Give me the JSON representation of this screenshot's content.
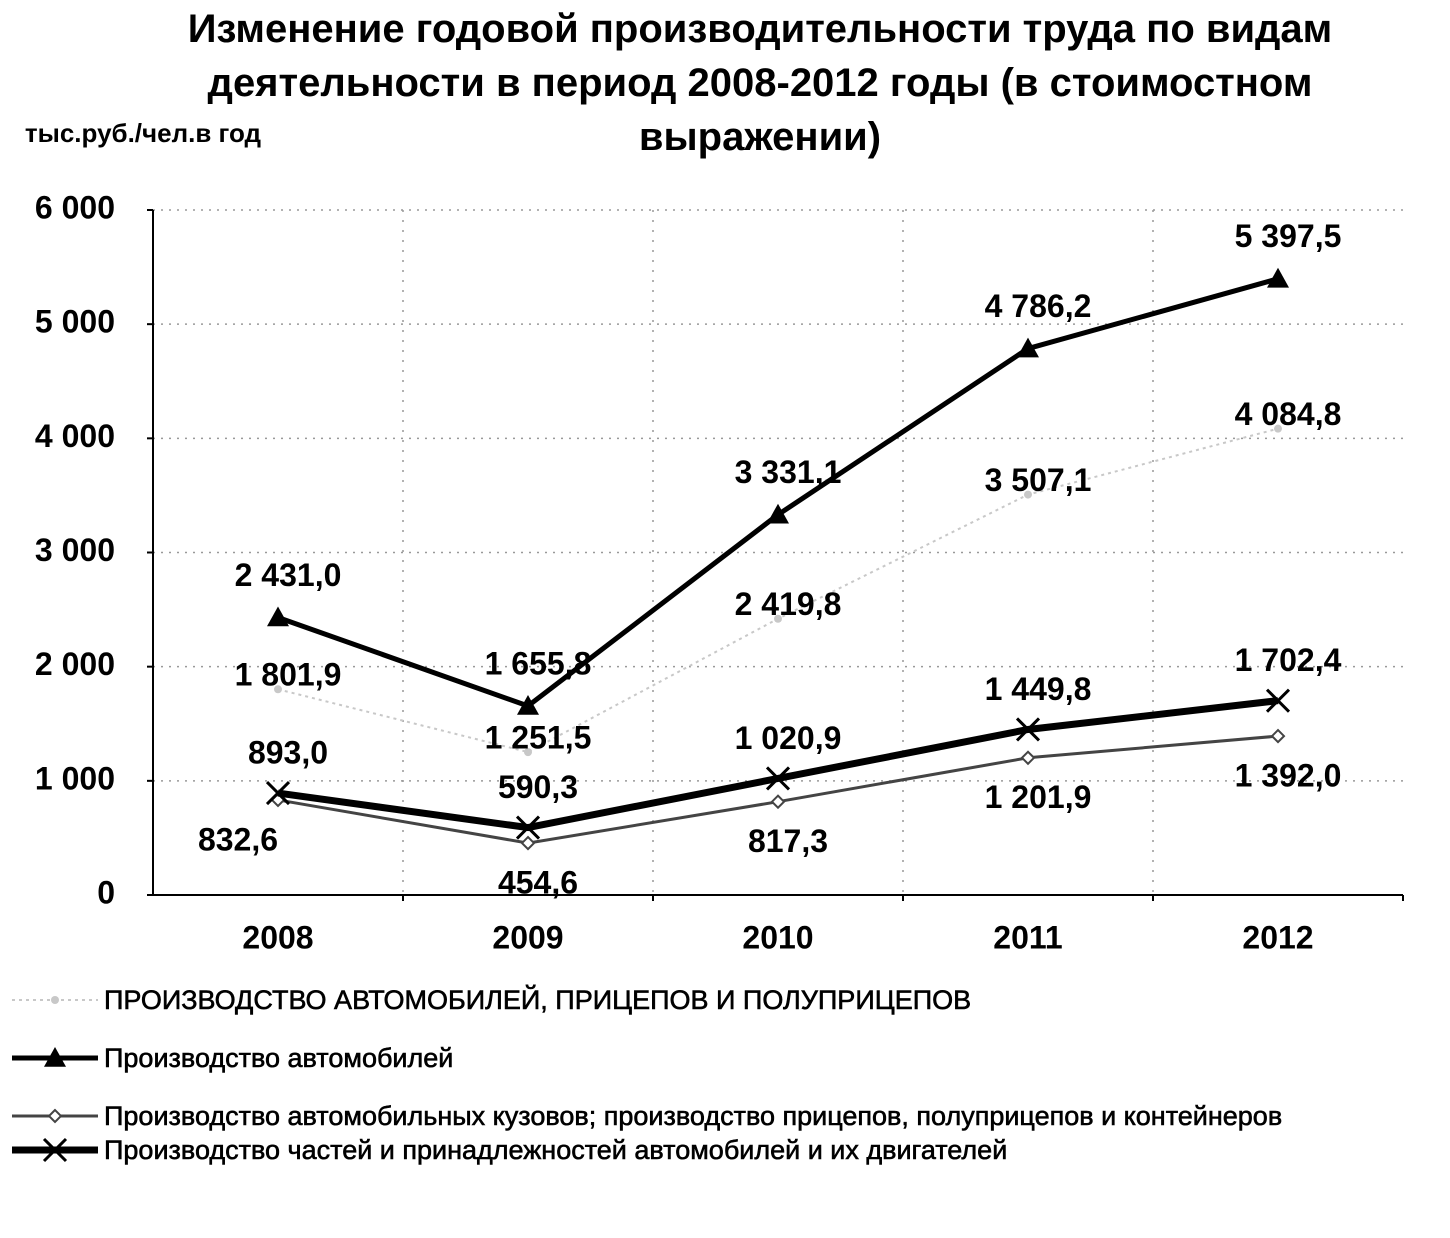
{
  "chart_data": {
    "type": "line",
    "title": "Изменение годовой производительности труда по видам деятельности в период 2008-2012 годы (в стоимостном выражении)",
    "y_label": "тыс.руб./чел.в год",
    "categories": [
      "2008",
      "2009",
      "2010",
      "2011",
      "2012"
    ],
    "ylim": [
      0,
      6000
    ],
    "yticks": [
      0,
      {
        "value": 1000,
        "label": "1 000"
      },
      {
        "value": 2000,
        "label": "2 000"
      },
      {
        "value": 3000,
        "label": "3 000"
      },
      {
        "value": 4000,
        "label": "4 000"
      },
      {
        "value": 5000,
        "label": "5 000"
      },
      {
        "value": 6000,
        "label": "6 000"
      }
    ],
    "grid": true,
    "series": [
      {
        "name": "ПРОИЗВОДСТВО  АВТОМОБИЛЕЙ,  ПРИЦЕПОВ  И ПОЛУПРИЦЕПОВ",
        "color": "#c8c8c8",
        "marker": "circle",
        "values": [
          1801.9,
          1251.5,
          2419.8,
          3507.1,
          4084.8
        ],
        "value_labels": [
          "1 801,9",
          "1 251,5",
          "2 419,8",
          "3 507,1",
          "4 084,8"
        ]
      },
      {
        "name": "Производство автомобилей",
        "color": "#000000",
        "marker": "triangle",
        "values": [
          2431.0,
          1655.8,
          3331.1,
          4786.2,
          5397.5
        ],
        "value_labels": [
          "2 431,0",
          "1 655,8",
          "3 331,1",
          "4 786,2",
          "5 397,5"
        ]
      },
      {
        "name": "Производство автомобильных  кузовов; производство прицепов, полуприцепов  и контейнеров",
        "color": "#444444",
        "marker": "diamond",
        "values": [
          832.6,
          454.6,
          817.3,
          1201.9,
          1392.0
        ],
        "value_labels": [
          "832,6",
          "454,6",
          "817,3",
          "1 201,9",
          "1 392,0"
        ]
      },
      {
        "name": "Производство частей и принадлежностей автомобилей и их  двигателей",
        "color": "#000000",
        "marker": "x",
        "values": [
          893.0,
          590.3,
          1020.9,
          1449.8,
          1702.4
        ],
        "value_labels": [
          "893,0",
          "590,3",
          "1 020,9",
          "1 449,8",
          "1 702,4"
        ]
      }
    ]
  }
}
